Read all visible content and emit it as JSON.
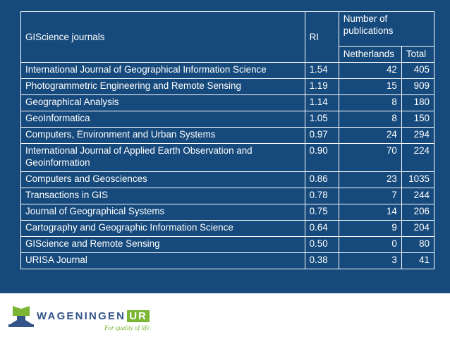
{
  "header": {
    "journal_col": "GIScience journals",
    "ri_col": "RI",
    "publications_col": "Number of publications",
    "netherlands_col": "Netherlands",
    "total_col": "Total"
  },
  "rows": [
    {
      "journal": "International Journal of Geographical Information Science",
      "ri": "1.54",
      "netherlands": "42",
      "total": "405"
    },
    {
      "journal": "Photogrammetric Engineering and Remote Sensing",
      "ri": "1.19",
      "netherlands": "15",
      "total": "909"
    },
    {
      "journal": "Geographical Analysis",
      "ri": "1.14",
      "netherlands": "8",
      "total": "180"
    },
    {
      "journal": "GeoInformatica",
      "ri": "1.05",
      "netherlands": "8",
      "total": "150"
    },
    {
      "journal": "Computers, Environment and Urban Systems",
      "ri": "0.97",
      "netherlands": "24",
      "total": "294"
    },
    {
      "journal": "International Journal of Applied Earth Observation and Geoinformation",
      "ri": "0.90",
      "netherlands": "70",
      "total": "224"
    },
    {
      "journal": "Computers and Geosciences",
      "ri": "0.86",
      "netherlands": "23",
      "total": "1035"
    },
    {
      "journal": "Transactions in GIS",
      "ri": "0.78",
      "netherlands": "7",
      "total": "244"
    },
    {
      "journal": "Journal of Geographical Systems",
      "ri": "0.75",
      "netherlands": "14",
      "total": "206"
    },
    {
      "journal": "Cartography and Geographic Information Science",
      "ri": "0.64",
      "netherlands": "9",
      "total": "204"
    },
    {
      "journal": "GIScience and Remote Sensing",
      "ri": "0.50",
      "netherlands": "0",
      "total": "80"
    },
    {
      "journal": "URISA Journal",
      "ri": "0.38",
      "netherlands": "3",
      "total": "41"
    }
  ],
  "logo": {
    "word": "WAGENINGEN",
    "box": "UR",
    "tagline": "For quality of life"
  },
  "colors": {
    "background": "#174a7c",
    "brand_blue": "#34548a",
    "brand_green": "#7ab534"
  }
}
